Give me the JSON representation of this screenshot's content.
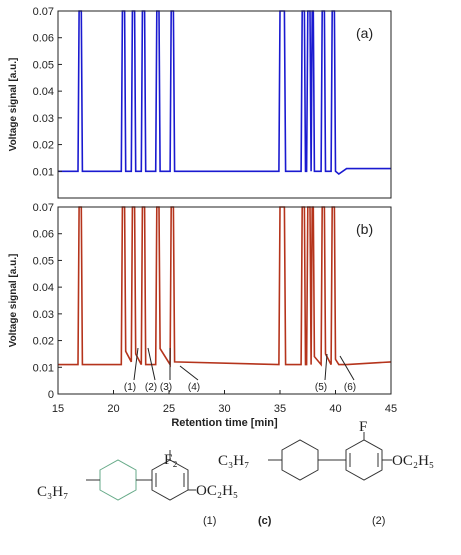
{
  "chart_data": [
    {
      "type": "line",
      "panel_label": "(a)",
      "y_label": "Voltage signal [a.u.]",
      "ylim": [
        0,
        0.07
      ],
      "yticks": [
        0.01,
        0.02,
        0.03,
        0.04,
        0.05,
        0.06,
        0.07
      ],
      "xlim": [
        15,
        45
      ],
      "series": [
        {
          "color": "#1a1ad0",
          "x": [
            15,
            16.8,
            16.9,
            17.1,
            17.2,
            20.7,
            20.8,
            21.0,
            21.1,
            21.6,
            21.7,
            21.9,
            22.0,
            22.5,
            22.6,
            22.8,
            22.9,
            23.8,
            23.9,
            24.1,
            24.2,
            25.1,
            25.2,
            25.4,
            25.5,
            34.9,
            35.0,
            35.4,
            35.5,
            36.9,
            37.0,
            37.2,
            37.3,
            37.4,
            37.5,
            37.7,
            37.8,
            37.9,
            38.0,
            38.1,
            38.7,
            38.8,
            39.0,
            39.1,
            39.6,
            39.7,
            39.9,
            40.0,
            40.3,
            41,
            45
          ],
          "values": [
            0.01,
            0.01,
            0.07,
            0.07,
            0.01,
            0.01,
            0.07,
            0.07,
            0.01,
            0.01,
            0.07,
            0.07,
            0.01,
            0.01,
            0.07,
            0.07,
            0.01,
            0.01,
            0.07,
            0.07,
            0.01,
            0.01,
            0.07,
            0.07,
            0.01,
            0.01,
            0.07,
            0.07,
            0.01,
            0.01,
            0.07,
            0.07,
            0.01,
            0.01,
            0.07,
            0.07,
            0.01,
            0.07,
            0.07,
            0.01,
            0.01,
            0.07,
            0.07,
            0.01,
            0.01,
            0.07,
            0.07,
            0.01,
            0.009,
            0.011,
            0.011
          ]
        }
      ]
    },
    {
      "type": "line",
      "panel_label": "(b)",
      "y_label": "Voltage signal [a.u.]",
      "x_label": "Retention time [min]",
      "ylim": [
        0,
        0.07
      ],
      "yticks": [
        0,
        0.01,
        0.02,
        0.03,
        0.04,
        0.05,
        0.06,
        0.07
      ],
      "xlim": [
        15,
        45
      ],
      "xticks": [
        15,
        20,
        25,
        30,
        35,
        40,
        45
      ],
      "annotations": [
        "(1)",
        "(2)",
        "(3)",
        "(4)",
        "(5)",
        "(6)"
      ],
      "series": [
        {
          "color": "#b5341c",
          "x": [
            15,
            16.8,
            16.9,
            17.1,
            17.2,
            20.7,
            20.8,
            21.0,
            21.1,
            21.6,
            21.7,
            21.9,
            22.0,
            22.5,
            22.6,
            22.8,
            22.9,
            23.8,
            23.9,
            24.1,
            24.2,
            25.1,
            25.2,
            25.4,
            25.5,
            34.9,
            35.0,
            35.4,
            35.5,
            36.9,
            37.0,
            37.2,
            37.3,
            37.4,
            37.5,
            37.7,
            37.8,
            37.9,
            38.0,
            38.1,
            38.7,
            38.8,
            39.0,
            39.1,
            39.6,
            39.7,
            39.9,
            40.0,
            40.3,
            41,
            45
          ],
          "values": [
            0.011,
            0.011,
            0.07,
            0.07,
            0.011,
            0.011,
            0.07,
            0.07,
            0.016,
            0.012,
            0.07,
            0.07,
            0.015,
            0.011,
            0.07,
            0.07,
            0.011,
            0.011,
            0.07,
            0.07,
            0.017,
            0.011,
            0.07,
            0.07,
            0.012,
            0.011,
            0.07,
            0.07,
            0.011,
            0.011,
            0.07,
            0.07,
            0.011,
            0.011,
            0.07,
            0.07,
            0.011,
            0.07,
            0.07,
            0.014,
            0.011,
            0.07,
            0.07,
            0.015,
            0.011,
            0.07,
            0.07,
            0.013,
            0.011,
            0.011,
            0.012
          ]
        }
      ]
    }
  ],
  "structures": {
    "alkyl": "C₃H₇",
    "fluoro": "F₂",
    "fluoro_2": "F",
    "alkoxy": "OC₂H₅",
    "label_1": "(1)",
    "label_2": "(2)",
    "caption": "(c)"
  }
}
